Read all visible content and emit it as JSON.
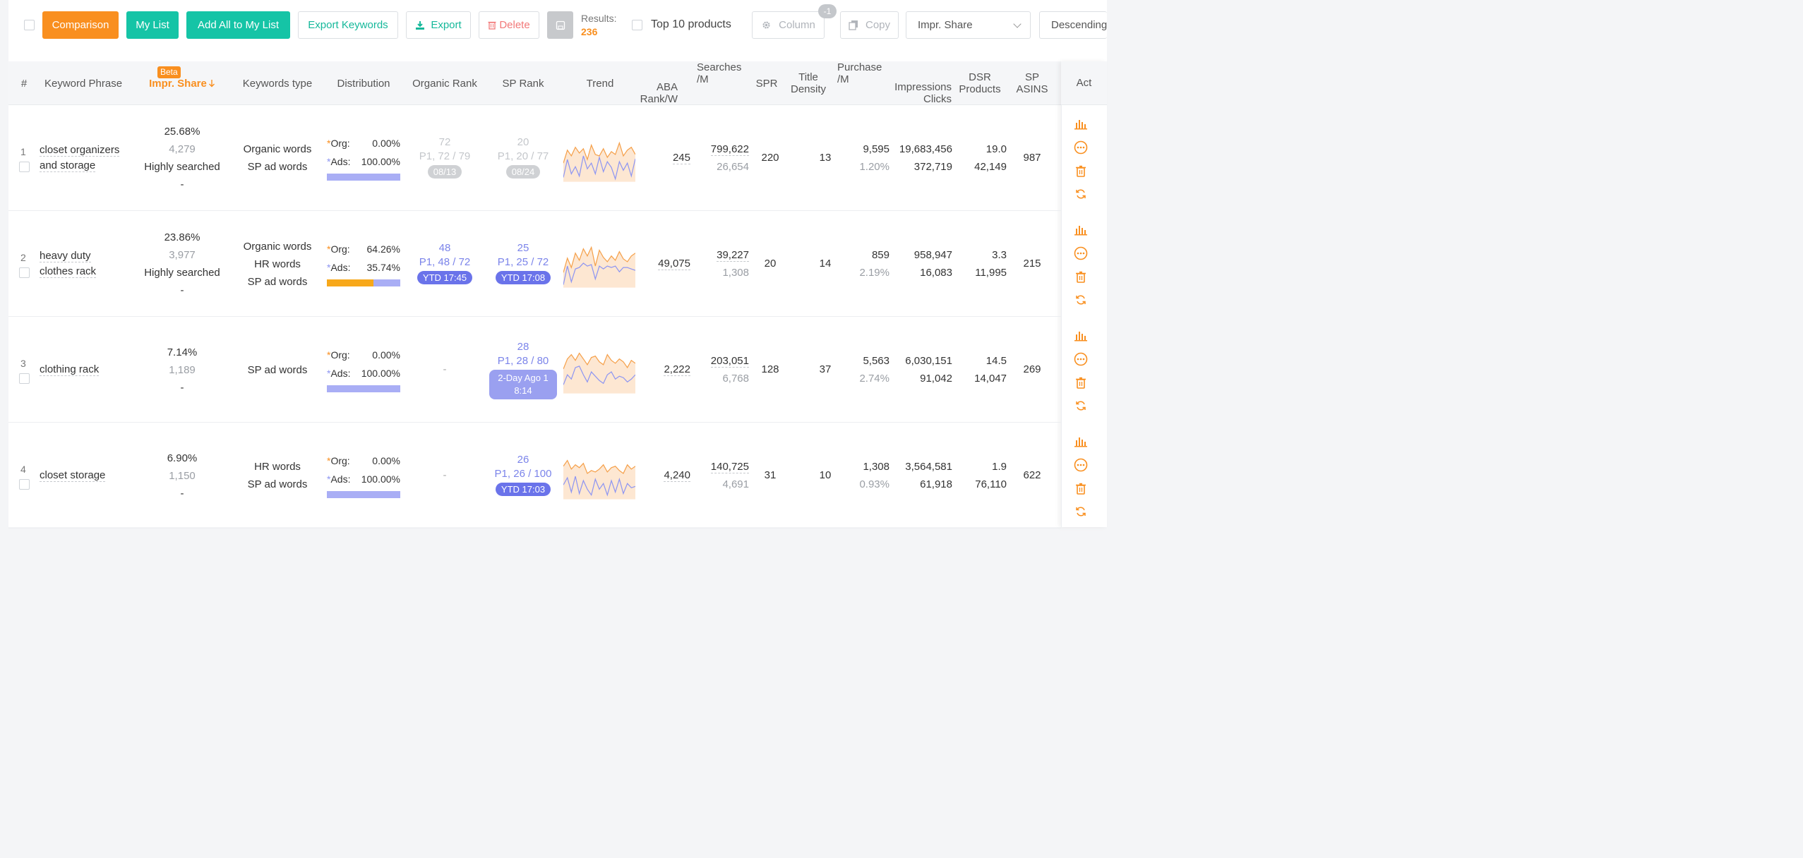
{
  "toolbar": {
    "comparison": "Comparison",
    "my_list": "My List",
    "add_all": "Add All to My List",
    "export_keywords": "Export Keywords",
    "export": "Export",
    "delete": "Delete",
    "results_label": "Results:",
    "results_value": "236",
    "top10": "Top 10 products",
    "column": "Column",
    "column_badge": "-1",
    "copy": "Copy",
    "sort_field": "Impr. Share",
    "sort_order": "Descending"
  },
  "colors": {
    "orange": "#f98f1f",
    "teal": "#15c4a6",
    "blue": "#6a73ea",
    "purple_bar": "#a9aef5"
  },
  "header": {
    "num": "#",
    "keyword": "Keyword Phrase",
    "impr_share": "Impr. Share",
    "beta": "Beta",
    "kw_type": "Keywords type",
    "distribution": "Distribution",
    "organic_rank": "Organic Rank",
    "sp_rank": "SP Rank",
    "trend": "Trend",
    "aba_1": "ABA",
    "aba_2": "Rank/W",
    "searches_1": "Searches",
    "searches_2": "/M",
    "spr": "SPR",
    "title_1": "Title",
    "title_2": "Density",
    "purchase_1": "Purchase",
    "purchase_2": "/M",
    "imp_1": "Impressions",
    "imp_2": "Clicks",
    "dsr_1": "DSR",
    "dsr_2": "Products",
    "sp_1": "SP",
    "sp_2": "ASINS",
    "act": "Act"
  },
  "rows": [
    {
      "index": "1",
      "keyword_1": "closet organizers",
      "keyword_2": "and storage",
      "impr_pct": "25.68%",
      "impr_count": "4,279",
      "impr_level": "Highly searched",
      "impr_dash": "-",
      "types": [
        "Organic words",
        "SP ad words"
      ],
      "org_label": "Org:",
      "org_val": "0.00%",
      "ads_label": "Ads:",
      "ads_val": "100.00%",
      "org_fraction": 0.0,
      "organic_rank": {
        "top": "72",
        "mid": "P1, 72 / 79",
        "pill": "08/13",
        "style": "gray"
      },
      "sp_rank": {
        "top": "20",
        "mid": "P1, 20 / 77",
        "pill": "08/24",
        "style": "gray"
      },
      "aba": "245",
      "searches": "799,622",
      "searches_sub": "26,654",
      "spr": "220",
      "title_density": "13",
      "purchase": "9,595",
      "purchase_pct": "1.20%",
      "impressions": "19,683,456",
      "clicks": "372,719",
      "dsr": "19.0",
      "products": "42,149",
      "sp_asins": "987"
    },
    {
      "index": "2",
      "keyword_1": "heavy duty",
      "keyword_2": "clothes rack",
      "impr_pct": "23.86%",
      "impr_count": "3,977",
      "impr_level": "Highly searched",
      "impr_dash": "-",
      "types": [
        "Organic words",
        "HR words",
        "SP ad words"
      ],
      "org_label": "Org:",
      "org_val": "64.26%",
      "ads_label": "Ads:",
      "ads_val": "35.74%",
      "org_fraction": 0.6426,
      "organic_rank": {
        "top": "48",
        "mid": "P1, 48 / 72",
        "pill": "YTD 17:45",
        "style": "blue"
      },
      "sp_rank": {
        "top": "25",
        "mid": "P1, 25 / 72",
        "pill": "YTD 17:08",
        "style": "blue"
      },
      "aba": "49,075",
      "searches": "39,227",
      "searches_sub": "1,308",
      "spr": "20",
      "title_density": "14",
      "purchase": "859",
      "purchase_pct": "2.19%",
      "impressions": "958,947",
      "clicks": "16,083",
      "dsr": "3.3",
      "products": "11,995",
      "sp_asins": "215"
    },
    {
      "index": "3",
      "keyword_1": "clothing rack",
      "keyword_2": "",
      "impr_pct": "7.14%",
      "impr_count": "1,189",
      "impr_level": "-",
      "impr_dash": "",
      "types": [
        "SP ad words"
      ],
      "org_label": "Org:",
      "org_val": "0.00%",
      "ads_label": "Ads:",
      "ads_val": "100.00%",
      "org_fraction": 0.0,
      "organic_rank": {
        "top": "-",
        "mid": "",
        "pill": "",
        "style": "dash"
      },
      "sp_rank": {
        "top": "28",
        "mid": "P1, 28 / 80",
        "pill": "2-Day Ago 1",
        "pill2": "8:14",
        "style": "light"
      },
      "aba": "2,222",
      "searches": "203,051",
      "searches_sub": "6,768",
      "spr": "128",
      "title_density": "37",
      "purchase": "5,563",
      "purchase_pct": "2.74%",
      "impressions": "6,030,151",
      "clicks": "91,042",
      "dsr": "14.5",
      "products": "14,047",
      "sp_asins": "269"
    },
    {
      "index": "4",
      "keyword_1": "closet storage",
      "keyword_2": "",
      "impr_pct": "6.90%",
      "impr_count": "1,150",
      "impr_level": "-",
      "impr_dash": "",
      "types": [
        "HR words",
        "SP ad words"
      ],
      "org_label": "Org:",
      "org_val": "0.00%",
      "ads_label": "Ads:",
      "ads_val": "100.00%",
      "org_fraction": 0.0,
      "organic_rank": {
        "top": "-",
        "mid": "",
        "pill": "",
        "style": "dash"
      },
      "sp_rank": {
        "top": "26",
        "mid": "P1, 26 / 100",
        "pill": "YTD 17:03",
        "style": "blue"
      },
      "aba": "4,240",
      "searches": "140,725",
      "searches_sub": "4,691",
      "spr": "31",
      "title_density": "10",
      "purchase": "1,308",
      "purchase_pct": "0.93%",
      "impressions": "3,564,581",
      "clicks": "61,918",
      "dsr": "1.9",
      "products": "76,110",
      "sp_asins": "622"
    }
  ]
}
